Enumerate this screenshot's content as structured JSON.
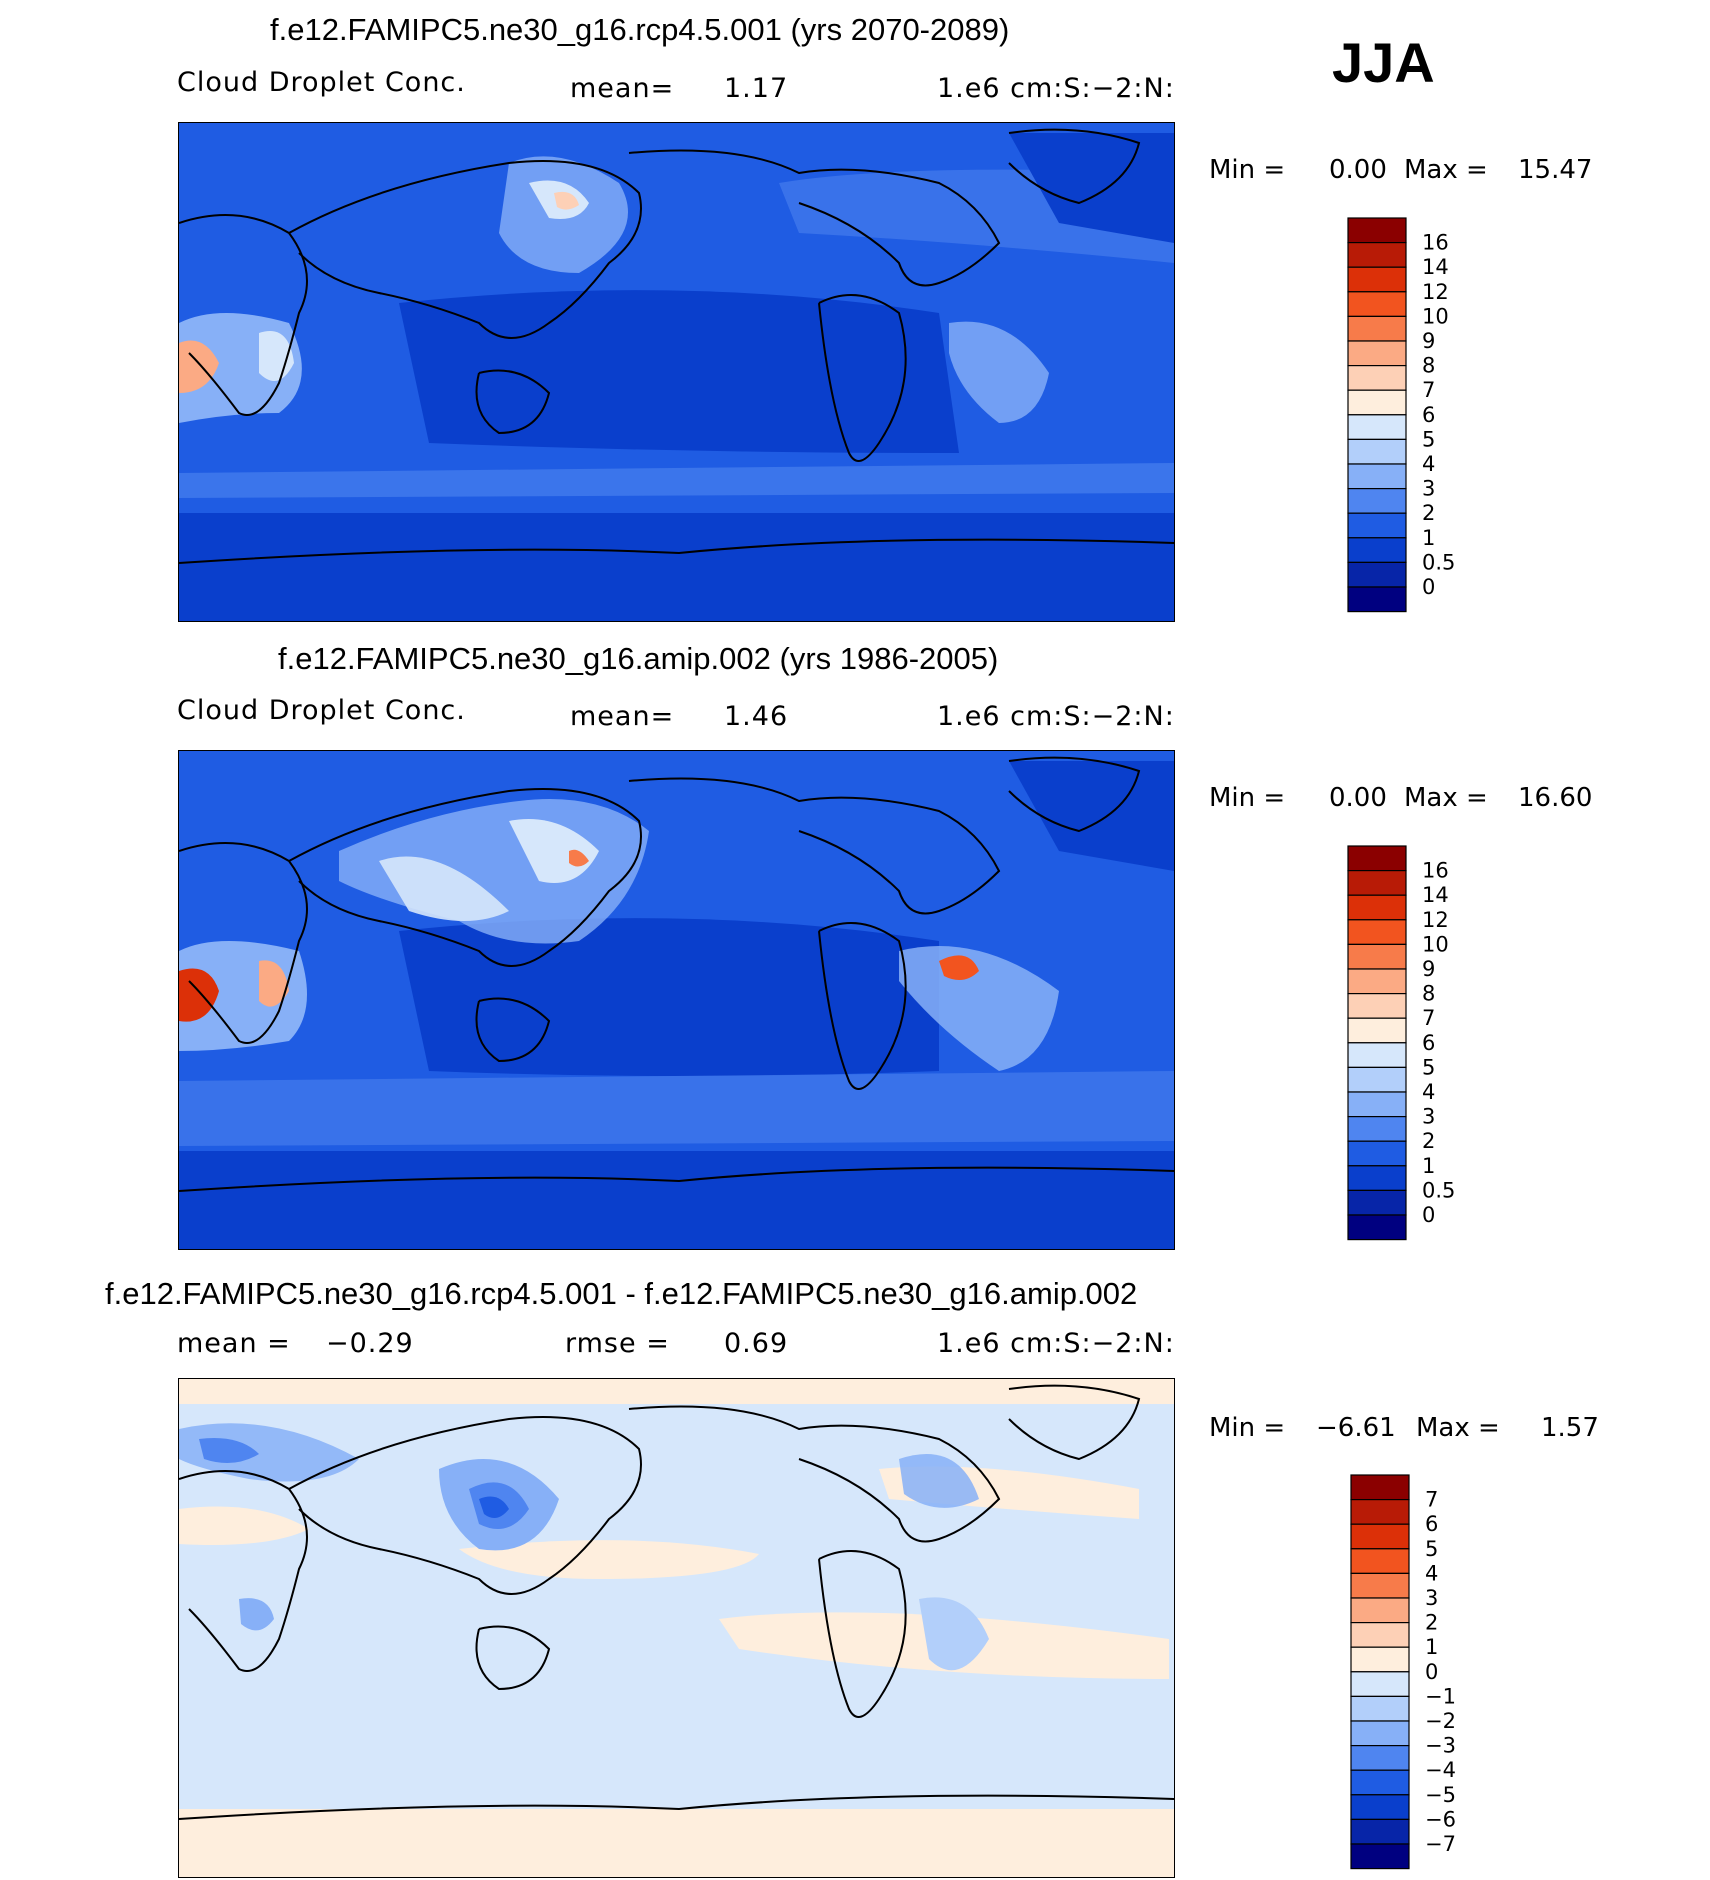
{
  "season": "JJA",
  "panels": [
    {
      "title": "f.e12.FAMIPC5.ne30_g16.rcp4.5.001 (yrs 2070-2089)",
      "variable": "Cloud Droplet Conc.",
      "stat_label": "mean=",
      "stat_value": "1.17",
      "units": "1.e6 cm:S:−2:N:",
      "min_label": "Min =",
      "min_value": "0.00",
      "max_label": "Max =",
      "max_value": "15.47",
      "colorbar": {
        "labels": [
          "16",
          "14",
          "12",
          "10",
          "9",
          "8",
          "7",
          "6",
          "5",
          "4",
          "3",
          "2",
          "1",
          "0.5",
          "0"
        ],
        "colors": [
          "#8b0000",
          "#b81b06",
          "#dc3008",
          "#f2541f",
          "#f77b4a",
          "#fbaa84",
          "#fdd0b6",
          "#feeedd",
          "#d6e7fb",
          "#b2cffa",
          "#87b0f7",
          "#4f85f0",
          "#1f5ce3",
          "#0a3fcc",
          "#0725a8",
          "#000080"
        ]
      }
    },
    {
      "title": "f.e12.FAMIPC5.ne30_g16.amip.002 (yrs 1986-2005)",
      "variable": "Cloud Droplet Conc.",
      "stat_label": "mean=",
      "stat_value": "1.46",
      "units": "1.e6 cm:S:−2:N:",
      "min_label": "Min =",
      "min_value": "0.00",
      "max_label": "Max =",
      "max_value": "16.60",
      "colorbar": {
        "labels": [
          "16",
          "14",
          "12",
          "10",
          "9",
          "8",
          "7",
          "6",
          "5",
          "4",
          "3",
          "2",
          "1",
          "0.5",
          "0"
        ],
        "colors": [
          "#8b0000",
          "#b81b06",
          "#dc3008",
          "#f2541f",
          "#f77b4a",
          "#fbaa84",
          "#fdd0b6",
          "#feeedd",
          "#d6e7fb",
          "#b2cffa",
          "#87b0f7",
          "#4f85f0",
          "#1f5ce3",
          "#0a3fcc",
          "#0725a8",
          "#000080"
        ]
      }
    },
    {
      "title": "f.e12.FAMIPC5.ne30_g16.rcp4.5.001 - f.e12.FAMIPC5.ne30_g16.amip.002",
      "mean_label": "mean =",
      "mean_value": "−0.29",
      "stat_label": "rmse =",
      "stat_value": "0.69",
      "units": "1.e6 cm:S:−2:N:",
      "min_label": "Min =",
      "min_value": "−6.61",
      "max_label": "Max =",
      "max_value": "1.57",
      "colorbar": {
        "labels": [
          "7",
          "6",
          "5",
          "4",
          "3",
          "2",
          "1",
          "0",
          "−1",
          "−2",
          "−3",
          "−4",
          "−5",
          "−6",
          "−7"
        ],
        "colors": [
          "#8b0000",
          "#b81b06",
          "#dc3008",
          "#f2541f",
          "#f77b4a",
          "#fbaa84",
          "#fdd0b6",
          "#feeedd",
          "#d6e7fb",
          "#b2cffa",
          "#87b0f7",
          "#4f85f0",
          "#1f5ce3",
          "#0a3fcc",
          "#0725a8",
          "#000080"
        ]
      }
    }
  ]
}
